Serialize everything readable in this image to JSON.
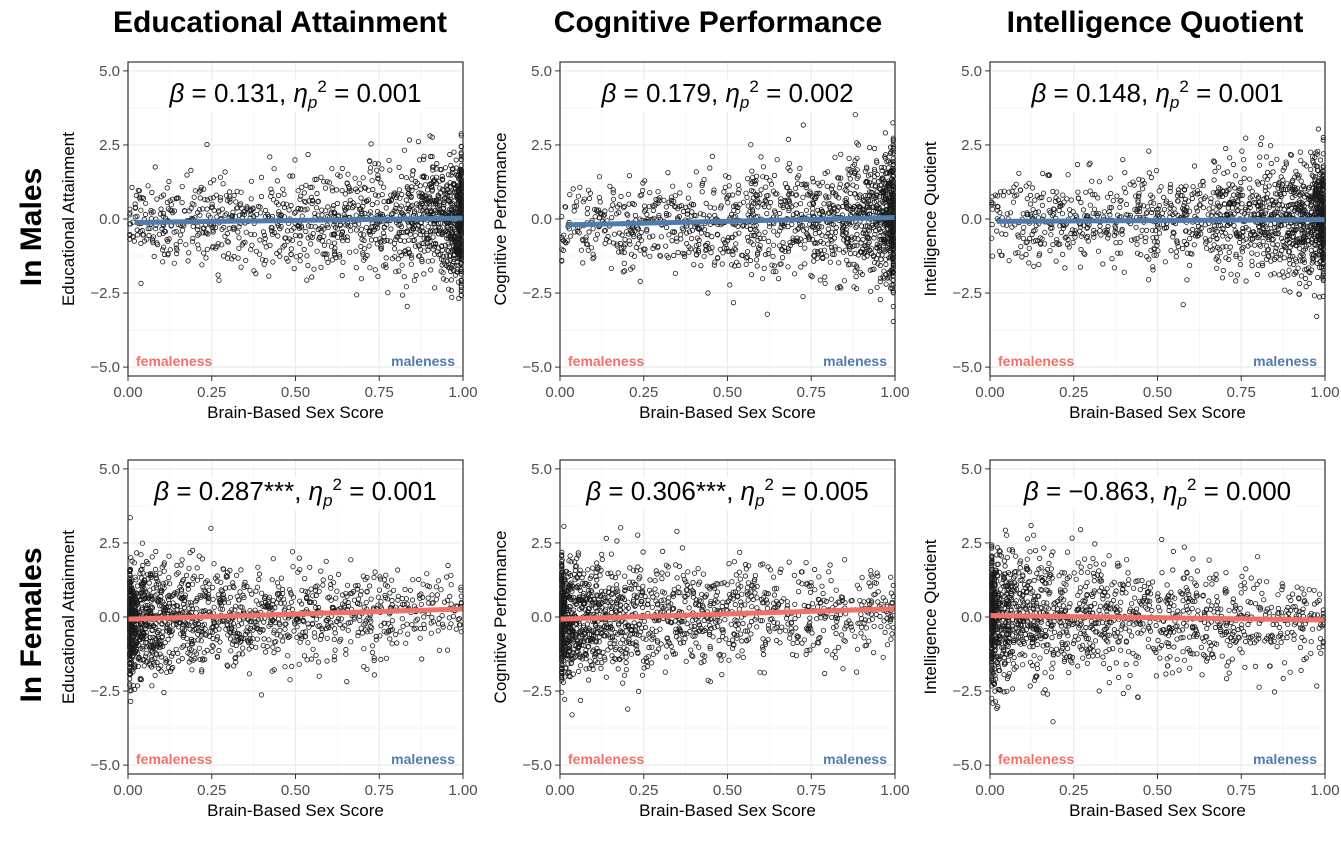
{
  "column_titles": [
    "Educational Attainment",
    "Cognitive Performance",
    "Intelligence Quotient"
  ],
  "row_labels": [
    "In Males",
    "In Females"
  ],
  "colors": {
    "male": "#4f7cac",
    "female": "#f07167",
    "point": "#1a1a1a",
    "grid": "#ebebeb",
    "border": "#333333"
  },
  "chart_data": [
    {
      "type": "scatter",
      "row": 0,
      "col": 0,
      "title": "Educational Attainment",
      "xlabel": "Brain-Based Sex Score",
      "ylabel": "Educational Attainment",
      "xlim": [
        0,
        1
      ],
      "ylim": [
        -5.3,
        5.3
      ],
      "xticks": [
        0,
        0.25,
        0.5,
        0.75,
        1
      ],
      "xtick_labels": [
        "0.00",
        "0.25",
        "0.50",
        "0.75",
        "1.00"
      ],
      "yticks": [
        -5,
        -2.5,
        0,
        2.5,
        5
      ],
      "ytick_labels": [
        "−5.0",
        "−2.5",
        "0.0",
        "2.5",
        "5.0"
      ],
      "grid": true,
      "annotation": {
        "beta": "0.131",
        "stars": "",
        "eta": "0.001"
      },
      "end_labels": {
        "left": "femaleness",
        "right": "maleness"
      },
      "fit_line": {
        "color_key": "male",
        "x": [
          0.02,
          1.0
        ],
        "y": [
          -0.12,
          0.03
        ]
      },
      "density": "male",
      "y_sd": 0.95
    },
    {
      "type": "scatter",
      "row": 0,
      "col": 1,
      "title": "Cognitive Performance",
      "xlabel": "Brain-Based Sex Score",
      "ylabel": "Cognitive Performance",
      "xlim": [
        0,
        1
      ],
      "ylim": [
        -5.3,
        5.3
      ],
      "xticks": [
        0,
        0.25,
        0.5,
        0.75,
        1
      ],
      "xtick_labels": [
        "0.00",
        "0.25",
        "0.50",
        "0.75",
        "1.00"
      ],
      "yticks": [
        -5,
        -2.5,
        0,
        2.5,
        5
      ],
      "ytick_labels": [
        "−5.0",
        "−2.5",
        "0.0",
        "2.5",
        "5.0"
      ],
      "grid": true,
      "annotation": {
        "beta": "0.179",
        "stars": "",
        "eta": "0.002"
      },
      "end_labels": {
        "left": "femaleness",
        "right": "maleness"
      },
      "fit_line": {
        "color_key": "male",
        "x": [
          0.02,
          1.0
        ],
        "y": [
          -0.2,
          0.05
        ]
      },
      "density": "male",
      "y_sd": 1.0
    },
    {
      "type": "scatter",
      "row": 0,
      "col": 2,
      "title": "Intelligence Quotient",
      "xlabel": "Brain-Based Sex Score",
      "ylabel": "Intelligence Quotient",
      "xlim": [
        0,
        1
      ],
      "ylim": [
        -5.3,
        5.3
      ],
      "xticks": [
        0,
        0.25,
        0.5,
        0.75,
        1
      ],
      "xtick_labels": [
        "0.00",
        "0.25",
        "0.50",
        "0.75",
        "1.00"
      ],
      "yticks": [
        -5,
        -2.5,
        0,
        2.5,
        5
      ],
      "ytick_labels": [
        "−5.0",
        "−2.5",
        "0.0",
        "2.5",
        "5.0"
      ],
      "grid": true,
      "annotation": {
        "beta": "0.148",
        "stars": "",
        "eta": "0.001"
      },
      "end_labels": {
        "left": "femaleness",
        "right": "maleness"
      },
      "fit_line": {
        "color_key": "male",
        "x": [
          0.02,
          1.0
        ],
        "y": [
          -0.08,
          -0.02
        ]
      },
      "density": "male",
      "y_sd": 0.95
    },
    {
      "type": "scatter",
      "row": 1,
      "col": 0,
      "title": "Educational Attainment",
      "xlabel": "Brain-Based Sex Score",
      "ylabel": "Educational Attainment",
      "xlim": [
        0,
        1
      ],
      "ylim": [
        -5.3,
        5.3
      ],
      "xticks": [
        0,
        0.25,
        0.5,
        0.75,
        1
      ],
      "xtick_labels": [
        "0.00",
        "0.25",
        "0.50",
        "0.75",
        "1.00"
      ],
      "yticks": [
        -5,
        -2.5,
        0,
        2.5,
        5
      ],
      "ytick_labels": [
        "−5.0",
        "−2.5",
        "0.0",
        "2.5",
        "5.0"
      ],
      "grid": true,
      "annotation": {
        "beta": "0.287",
        "stars": "***",
        "eta": "0.001"
      },
      "end_labels": {
        "left": "femaleness",
        "right": "maleness"
      },
      "fit_line": {
        "color_key": "female",
        "x": [
          0.0,
          1.0
        ],
        "y": [
          -0.07,
          0.27
        ]
      },
      "density": "female",
      "y_sd": 0.9
    },
    {
      "type": "scatter",
      "row": 1,
      "col": 1,
      "title": "Cognitive Performance",
      "xlabel": "Brain-Based Sex Score",
      "ylabel": "Cognitive Performance",
      "xlim": [
        0,
        1
      ],
      "ylim": [
        -5.3,
        5.3
      ],
      "xticks": [
        0,
        0.25,
        0.5,
        0.75,
        1
      ],
      "xtick_labels": [
        "0.00",
        "0.25",
        "0.50",
        "0.75",
        "1.00"
      ],
      "yticks": [
        -5,
        -2.5,
        0,
        2.5,
        5
      ],
      "ytick_labels": [
        "−5.0",
        "−2.5",
        "0.0",
        "2.5",
        "5.0"
      ],
      "grid": true,
      "annotation": {
        "beta": "0.306",
        "stars": "***",
        "eta": "0.005"
      },
      "end_labels": {
        "left": "femaleness",
        "right": "maleness"
      },
      "fit_line": {
        "color_key": "female",
        "x": [
          0.0,
          1.0
        ],
        "y": [
          -0.07,
          0.28
        ]
      },
      "density": "female",
      "y_sd": 0.95
    },
    {
      "type": "scatter",
      "row": 1,
      "col": 2,
      "title": "Intelligence Quotient",
      "xlabel": "Brain-Based Sex Score",
      "ylabel": "Intelligence Quotient",
      "xlim": [
        0,
        1
      ],
      "ylim": [
        -5.3,
        5.3
      ],
      "xticks": [
        0,
        0.25,
        0.5,
        0.75,
        1
      ],
      "xtick_labels": [
        "0.00",
        "0.25",
        "0.50",
        "0.75",
        "1.00"
      ],
      "yticks": [
        -5,
        -2.5,
        0,
        2.5,
        5
      ],
      "ytick_labels": [
        "−5.0",
        "−2.5",
        "0.0",
        "2.5",
        "5.0"
      ],
      "grid": true,
      "annotation": {
        "beta": "−0.863",
        "stars": "",
        "eta": "0.000"
      },
      "end_labels": {
        "left": "femaleness",
        "right": "maleness"
      },
      "fit_line": {
        "color_key": "female",
        "x": [
          0.0,
          1.0
        ],
        "y": [
          0.05,
          -0.1
        ]
      },
      "density": "female",
      "y_sd": 1.0
    }
  ]
}
